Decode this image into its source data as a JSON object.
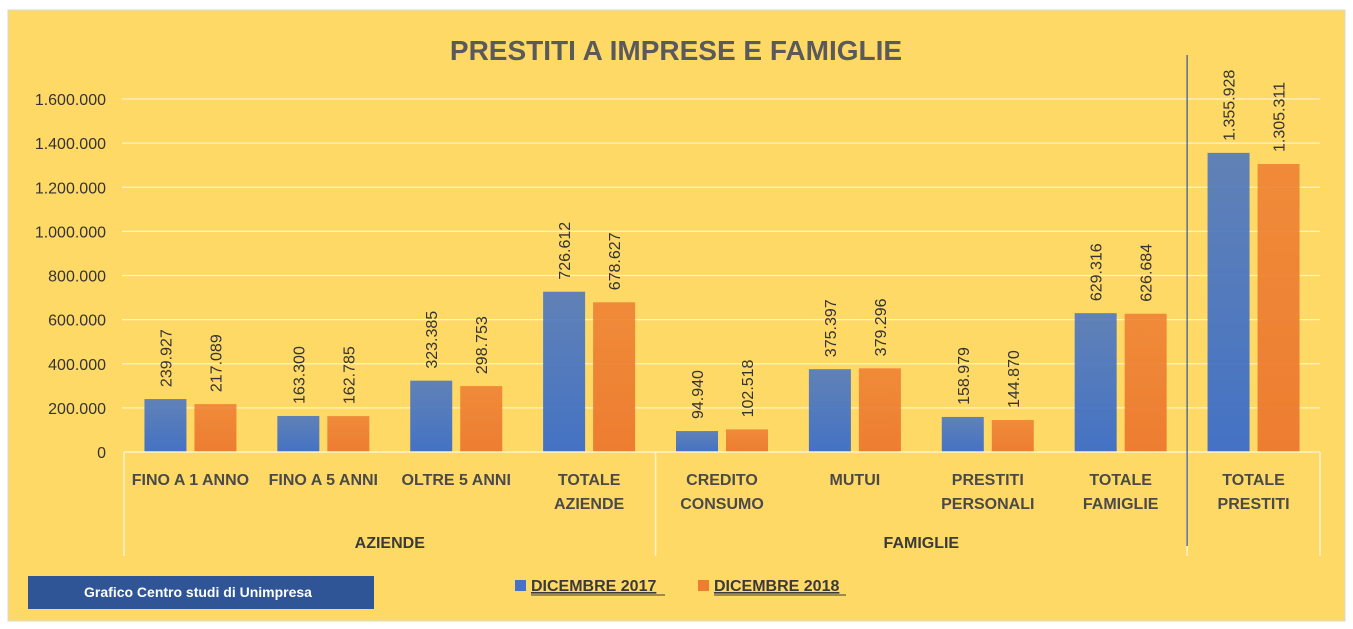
{
  "colors": {
    "background": "#FFD966",
    "series_2017": "#4472C4",
    "series_2018": "#ED7D31",
    "grid": "#FFF2CC",
    "credit_box": "#2F5597"
  },
  "credit": "Grafico Centro studi di Unimpresa",
  "chart_data": {
    "type": "bar",
    "title": "PRESTITI A IMPRESE E FAMIGLIE",
    "ylim": [
      0,
      1600000
    ],
    "yticks": [
      0,
      200000,
      400000,
      600000,
      800000,
      1000000,
      1200000,
      1400000,
      1600000
    ],
    "ytick_labels": [
      "0",
      "200.000",
      "400.000",
      "600.000",
      "800.000",
      "1.000.000",
      "1.200.000",
      "1.400.000",
      "1.600.000"
    ],
    "grid": true,
    "legend_position": "bottom",
    "categories": [
      [
        "FINO A 1 ANNO"
      ],
      [
        "FINO A 5 ANNI"
      ],
      [
        "OLTRE 5 ANNI"
      ],
      [
        "TOTALE",
        "AZIENDE"
      ],
      [
        "CREDITO",
        "CONSUMO"
      ],
      [
        "MUTUI"
      ],
      [
        "PRESTITI",
        "PERSONALI"
      ],
      [
        "TOTALE",
        "FAMIGLIE"
      ],
      [
        "TOTALE",
        "PRESTITI"
      ]
    ],
    "groups": [
      {
        "label": "AZIENDE",
        "categories": [
          0,
          1,
          2,
          3
        ]
      },
      {
        "label": "FAMIGLIE",
        "categories": [
          4,
          5,
          6,
          7
        ]
      },
      {
        "label": "",
        "categories": [
          8
        ]
      }
    ],
    "series": [
      {
        "name": "DICEMBRE 2017",
        "values": [
          239927,
          163300,
          323385,
          726612,
          94940,
          375397,
          158979,
          629316,
          1355928
        ],
        "labels": [
          "239.927",
          "163.300",
          "323.385",
          "726.612",
          "94.940",
          "375.397",
          "158.979",
          "629.316",
          "1.355.928"
        ]
      },
      {
        "name": "DICEMBRE 2018",
        "values": [
          217089,
          162785,
          298753,
          678627,
          102518,
          379296,
          144870,
          626684,
          1305311
        ],
        "labels": [
          "217.089",
          "162.785",
          "298.753",
          "678.627",
          "102.518",
          "379.296",
          "144.870",
          "626.684",
          "1.305.311"
        ]
      }
    ]
  }
}
